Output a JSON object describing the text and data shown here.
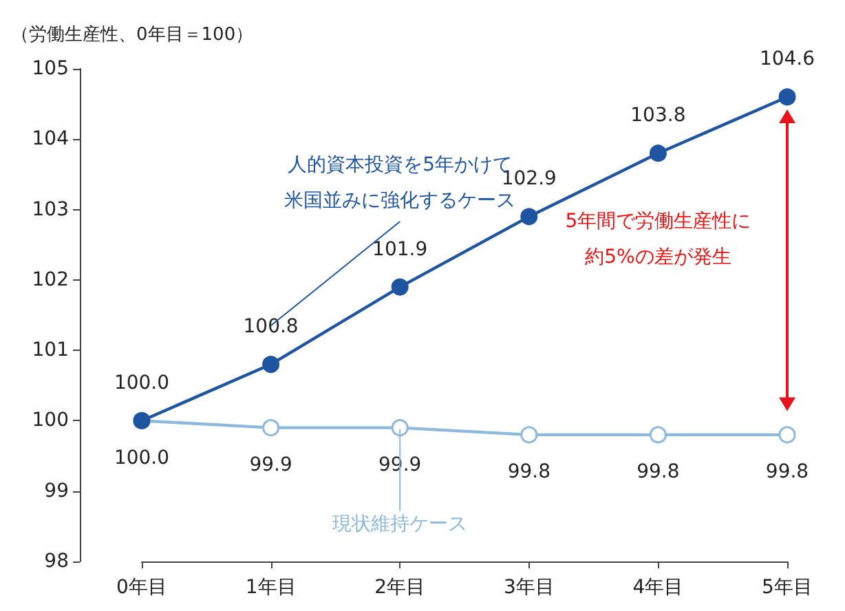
{
  "chart_data": {
    "type": "line",
    "ylabel": "（労働生産性、0年目＝100）",
    "categories": [
      "0年目",
      "1年目",
      "2年目",
      "3年目",
      "4年目",
      "5年目"
    ],
    "series": [
      {
        "name": "人的資本投資を5年かけて米国並みに強化するケース",
        "color": "#1f54a0",
        "values": [
          100.0,
          100.8,
          101.9,
          102.9,
          103.8,
          104.6
        ],
        "value_labels": [
          "100.0",
          "100.8",
          "101.9",
          "102.9",
          "103.8",
          "104.6"
        ]
      },
      {
        "name": "現状維持ケース",
        "color": "#8fb8dd",
        "values": [
          100.0,
          99.9,
          99.9,
          99.8,
          99.8,
          99.8
        ],
        "value_labels": [
          "100.0",
          "99.9",
          "99.9",
          "99.8",
          "99.8",
          "99.8"
        ]
      }
    ],
    "ylim": [
      98,
      105
    ],
    "yticks": [
      98,
      99,
      100,
      101,
      102,
      103,
      104,
      105
    ],
    "annotations": [
      "5年間で労働生産性に約5%の差が発生"
    ],
    "grid": false,
    "legend": false,
    "marker": "circle",
    "line_style": "solid"
  }
}
